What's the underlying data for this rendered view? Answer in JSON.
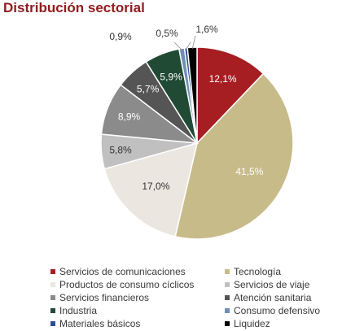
{
  "chart_data": {
    "type": "pie",
    "title": "Distribución sectorial",
    "start_angle_deg": 0,
    "direction": "clockwise",
    "slices": [
      {
        "label": "Servicios de comunicaciones",
        "value": 12.1,
        "display": "12,1%",
        "color": "#a61e22"
      },
      {
        "label": "Tecnología",
        "value": 41.5,
        "display": "41,5%",
        "color": "#c8bb8a"
      },
      {
        "label": "Productos de consumo cíclicos",
        "value": 17.0,
        "display": "17,0%",
        "color": "#ebe6df"
      },
      {
        "label": "Servicios de viaje",
        "value": 5.8,
        "display": "5,8%",
        "color": "#c0c0c0"
      },
      {
        "label": "Servicios financieros",
        "value": 8.9,
        "display": "8,9%",
        "color": "#8b8b8b"
      },
      {
        "label": "Atención sanitaria",
        "value": 5.7,
        "display": "5,7%",
        "color": "#555555"
      },
      {
        "label": "Industria",
        "value": 5.9,
        "display": "5,9%",
        "color": "#214a35"
      },
      {
        "label": "Consumo defensivo",
        "value": 0.9,
        "display": "0,9%",
        "color": "#6f8fb5"
      },
      {
        "label": "Materiales básicos",
        "value": 0.5,
        "display": "0,5%",
        "color": "#2f4f94"
      },
      {
        "label": "Liquidez",
        "value": 1.6,
        "display": "1,6%",
        "color": "#000000"
      }
    ],
    "legend_position": "bottom"
  }
}
